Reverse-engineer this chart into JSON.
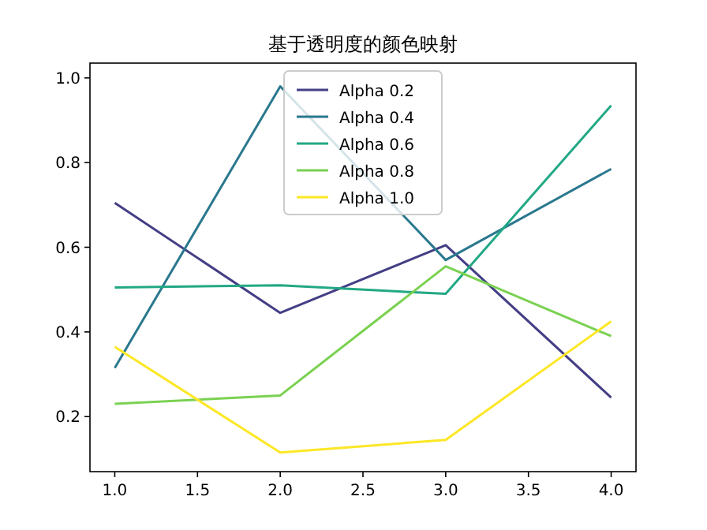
{
  "chart_data": {
    "type": "line",
    "title": "基于透明度的颜色映射",
    "x": [
      1,
      2,
      3,
      4
    ],
    "series": [
      {
        "name": "Alpha 0.2",
        "color": "#433e85",
        "values": [
          0.705,
          0.445,
          0.605,
          0.245
        ]
      },
      {
        "name": "Alpha 0.4",
        "color": "#2a788e",
        "values": [
          0.315,
          0.98,
          0.57,
          0.785
        ]
      },
      {
        "name": "Alpha 0.6",
        "color": "#22a884",
        "values": [
          0.505,
          0.51,
          0.49,
          0.935
        ]
      },
      {
        "name": "Alpha 0.8",
        "color": "#7ad151",
        "values": [
          0.23,
          0.25,
          0.555,
          0.39
        ]
      },
      {
        "name": "Alpha 1.0",
        "color": "#fde725",
        "values": [
          0.365,
          0.115,
          0.145,
          0.425
        ]
      }
    ],
    "xlim": [
      0.85,
      4.15
    ],
    "ylim": [
      0.07,
      1.035
    ],
    "xticks": [
      {
        "value": 1,
        "label": "1.0"
      },
      {
        "value": 1.5,
        "label": "1.5"
      },
      {
        "value": 2,
        "label": "2.0"
      },
      {
        "value": 2.5,
        "label": "2.5"
      },
      {
        "value": 3,
        "label": "3.0"
      },
      {
        "value": 3.5,
        "label": "3.5"
      },
      {
        "value": 4,
        "label": "4.0"
      }
    ],
    "yticks": [
      {
        "value": 0.2,
        "label": "0.2"
      },
      {
        "value": 0.4,
        "label": "0.4"
      },
      {
        "value": 0.6,
        "label": "0.6"
      },
      {
        "value": 0.8,
        "label": "0.8"
      },
      {
        "value": 1,
        "label": "1.0"
      }
    ],
    "legend": "top",
    "grid": false,
    "marker": "none",
    "line_style": "solid"
  }
}
